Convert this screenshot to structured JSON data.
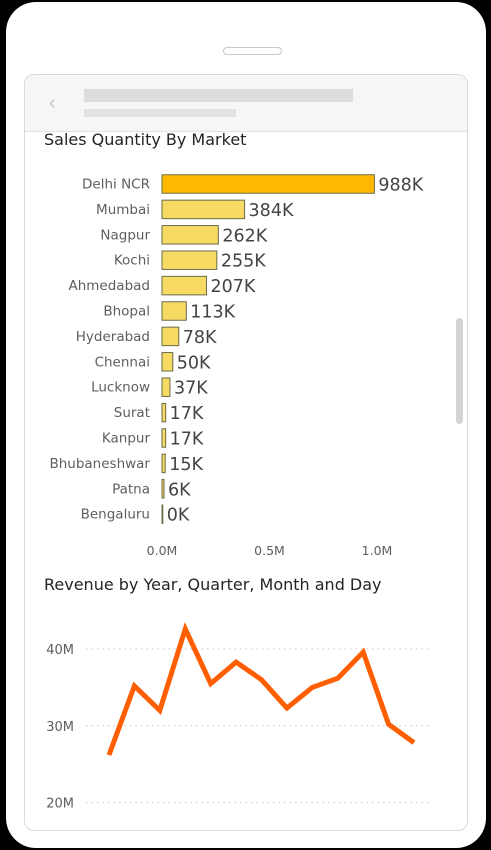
{
  "header": {
    "back_icon": "chevron-left-icon"
  },
  "chart_data": [
    {
      "type": "bar",
      "orientation": "horizontal",
      "title": "Sales Quantity By Market",
      "categories": [
        "Delhi NCR",
        "Mumbai",
        "Nagpur",
        "Kochi",
        "Ahmedabad",
        "Bhopal",
        "Hyderabad",
        "Chennai",
        "Lucknow",
        "Surat",
        "Kanpur",
        "Bhubaneshwar",
        "Patna",
        "Bengaluru"
      ],
      "values": [
        988000,
        384000,
        262000,
        255000,
        207000,
        113000,
        78000,
        50000,
        37000,
        17000,
        17000,
        15000,
        6000,
        0
      ],
      "data_labels": [
        "988K",
        "384K",
        "262K",
        "255K",
        "207K",
        "113K",
        "78K",
        "50K",
        "37K",
        "17K",
        "17K",
        "15K",
        "6K",
        "0K"
      ],
      "xticks": [
        "0.0M",
        "0.5M",
        "1.0M"
      ],
      "xtick_values": [
        0,
        500000,
        1000000
      ],
      "xlim": [
        0,
        1000000
      ],
      "highlight_color": "#FFB900",
      "bar_color": "#F6DA64",
      "bar_border": "#6b6b4a"
    },
    {
      "type": "line",
      "title": "Revenue by Year, Quarter, Month and Day",
      "values": [
        26.2,
        35.2,
        32.0,
        42.6,
        35.5,
        38.3,
        36.0,
        32.3,
        35.0,
        36.2,
        39.6,
        30.2,
        27.8
      ],
      "yticks": [
        "20M",
        "30M",
        "40M"
      ],
      "ytick_values": [
        20,
        30,
        40
      ],
      "ylim": [
        20,
        45
      ],
      "color": "#FF5F00",
      "grid": true
    }
  ]
}
